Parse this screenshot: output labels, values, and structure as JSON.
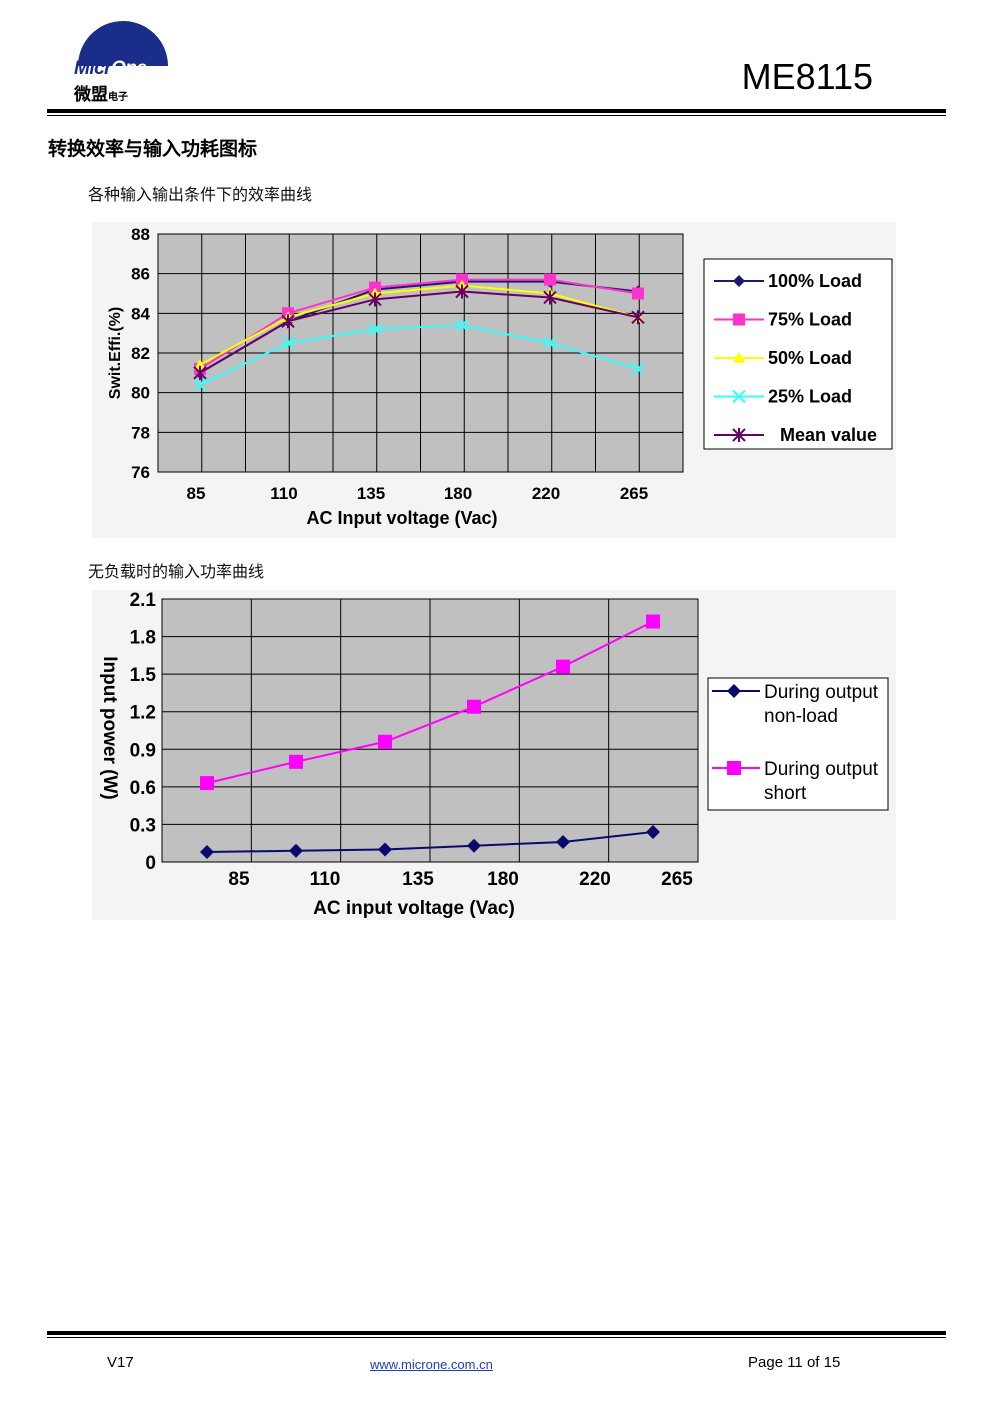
{
  "header": {
    "logo_latin_1": "Micr",
    "logo_latin_2": "One",
    "logo_cn_big": "微盟",
    "logo_cn_small": "电子",
    "model": "ME8115"
  },
  "section_title": "转换效率与输入功耗图标",
  "captions": {
    "efficiency": "各种输入输出条件下的效率曲线",
    "power": "无负载时的输入功率曲线"
  },
  "chart_data": [
    {
      "type": "line",
      "xlabel": "AC Input voltage (Vac)",
      "ylabel": "Swit.Effi.(%)",
      "categories": [
        "85",
        "110",
        "135",
        "180",
        "220",
        "265"
      ],
      "ylim": [
        76,
        88
      ],
      "yticks": [
        76,
        78,
        80,
        82,
        84,
        86,
        88
      ],
      "grid": true,
      "legend_position": "right",
      "series": [
        {
          "name": "100%  Load",
          "values": [
            81.0,
            83.6,
            85.2,
            85.6,
            85.6,
            85.1
          ],
          "color": "#1a1a6e",
          "marker": "diamond"
        },
        {
          "name": "75%  Load",
          "values": [
            81.2,
            84.0,
            85.3,
            85.7,
            85.7,
            85.0
          ],
          "color": "#ff33cc",
          "marker": "square"
        },
        {
          "name": "50%  Load",
          "values": [
            81.4,
            83.8,
            85.0,
            85.4,
            85.0,
            83.8
          ],
          "color": "#ffff00",
          "marker": "triangle"
        },
        {
          "name": "25%  Load",
          "values": [
            80.4,
            82.5,
            83.2,
            83.4,
            82.5,
            81.2
          ],
          "color": "#33ffff",
          "marker": "x"
        },
        {
          "name": "Mean value",
          "values": [
            81.0,
            83.6,
            84.7,
            85.1,
            84.8,
            83.8
          ],
          "color": "#660066",
          "marker": "star"
        }
      ]
    },
    {
      "type": "line",
      "xlabel": "AC input voltage (Vac)",
      "ylabel": "Input power (W)",
      "categories": [
        "85",
        "110",
        "135",
        "180",
        "220",
        "265"
      ],
      "ylim": [
        0,
        2.1
      ],
      "yticks": [
        "0",
        "0.3",
        "0.6",
        "0.9",
        "1.2",
        "1.5",
        "1.8",
        "2.1"
      ],
      "grid": true,
      "legend_position": "right",
      "series": [
        {
          "name_line1": "During output",
          "name_line2": "non-load",
          "values": [
            0.08,
            0.09,
            0.1,
            0.13,
            0.16,
            0.24
          ],
          "color": "#0a0a6e",
          "marker": "diamond"
        },
        {
          "name_line1": "During output",
          "name_line2": "short",
          "values": [
            0.63,
            0.8,
            0.96,
            1.24,
            1.56,
            1.92
          ],
          "color": "#ff00ff",
          "marker": "square"
        }
      ]
    }
  ],
  "footer": {
    "version": "V17",
    "url": "www.microne.com.cn",
    "page": "Page 11 of 15"
  }
}
